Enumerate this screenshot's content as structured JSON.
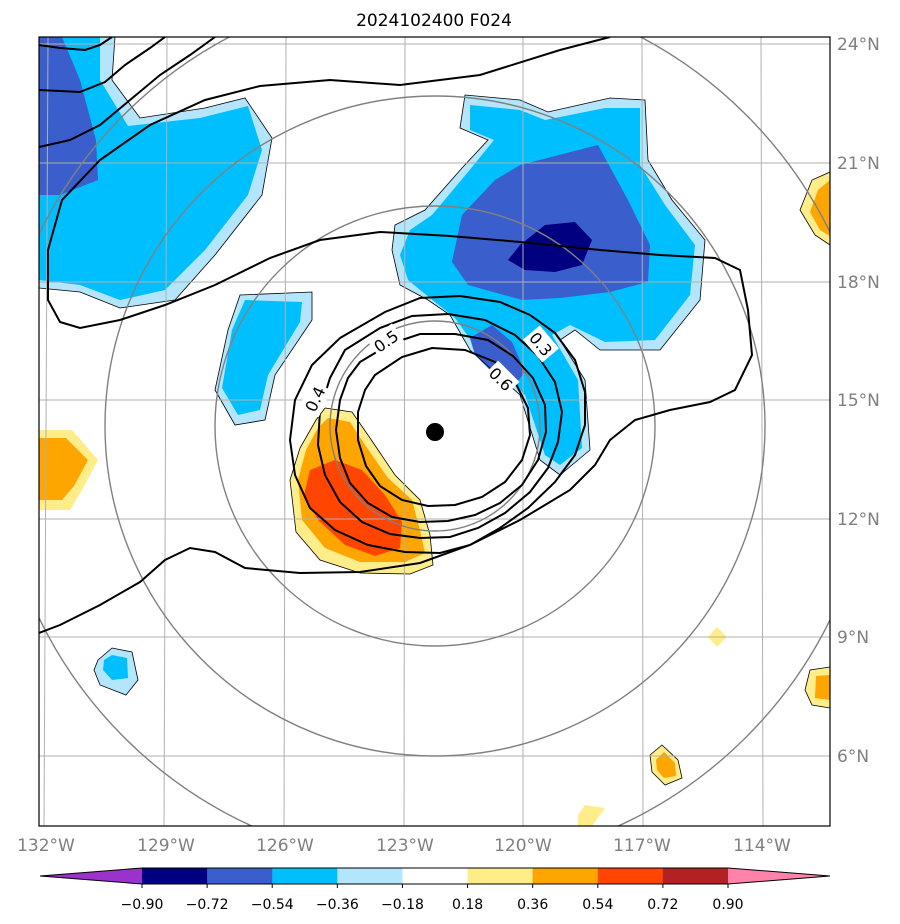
{
  "title": "2024102400 F024",
  "lat_ticks": [
    "24°N",
    "21°N",
    "18°N",
    "15°N",
    "12°N",
    "9°N",
    "6°N"
  ],
  "lon_ticks": [
    "132°W",
    "129°W",
    "126°W",
    "123°W",
    "120°W",
    "117°W",
    "114°W"
  ],
  "contour_labels": [
    "0.3",
    "0.4",
    "0.5",
    "0.6"
  ],
  "colorbar": {
    "labels": [
      "−0.90",
      "−0.72",
      "−0.54",
      "−0.36",
      "−0.18",
      "0.18",
      "0.36",
      "0.54",
      "0.72",
      "0.90"
    ],
    "colors": [
      "#9933cc",
      "#000080",
      "#3a5fcd",
      "#00bfff",
      "#b3e5fc",
      "#ffffff",
      "#ffed8a",
      "#ffa500",
      "#ff4500",
      "#b22222",
      "#ff82ab"
    ]
  },
  "colors": {
    "grid": "#b0b0b0",
    "range_rings": "#808080",
    "contour": "#000000",
    "center_marker": "#000000"
  }
}
